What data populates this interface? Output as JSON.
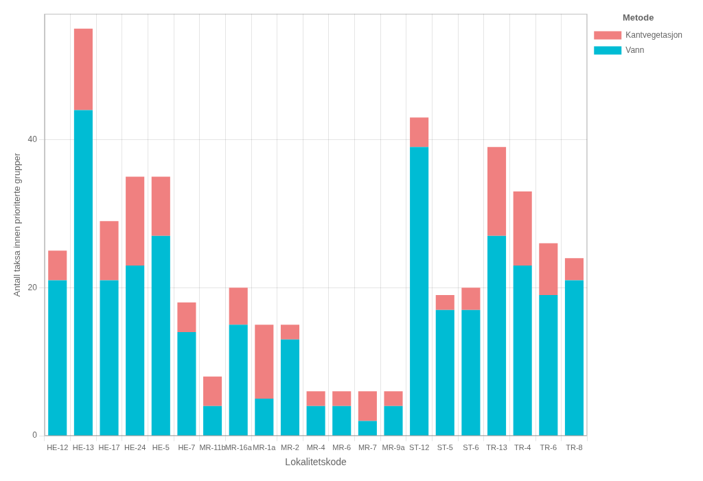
{
  "chart_data": {
    "type": "bar",
    "stacked": true,
    "categories": [
      "HE-12",
      "HE-13",
      "HE-17",
      "HE-24",
      "HE-5",
      "HE-7",
      "MR-11b",
      "MR-16a",
      "MR-1a",
      "MR-2",
      "MR-4",
      "MR-6",
      "MR-7",
      "MR-9a",
      "ST-12",
      "ST-5",
      "ST-6",
      "TR-13",
      "TR-4",
      "TR-6",
      "TR-8"
    ],
    "series": [
      {
        "name": "Vann",
        "color": "#00BCD4",
        "values": [
          21,
          44,
          21,
          23,
          27,
          14,
          4,
          15,
          5,
          13,
          4,
          4,
          2,
          4,
          39,
          17,
          17,
          27,
          23,
          19,
          21
        ]
      },
      {
        "name": "Kantvegetasjon",
        "color": "#F08080",
        "values": [
          4,
          11,
          8,
          12,
          8,
          4,
          4,
          5,
          10,
          2,
          2,
          2,
          4,
          2,
          4,
          2,
          3,
          12,
          10,
          7,
          3
        ]
      }
    ],
    "xlabel": "Lokalitetskode",
    "ylabel": "Antall taksa innen prioriterte grupper",
    "ylim": [
      0,
      57
    ],
    "yticks": [
      0,
      20,
      40
    ],
    "grid": true,
    "legend": "upper right",
    "legend_title": "Metode"
  }
}
